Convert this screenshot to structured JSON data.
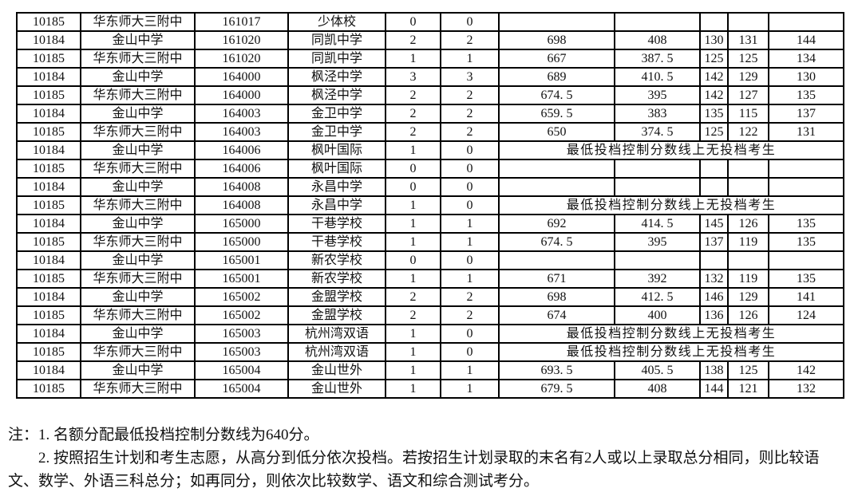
{
  "table": {
    "column_semantics": [
      "district_school_code",
      "district_school_name",
      "middle_school_code",
      "middle_school_name",
      "plan_count",
      "admitted_count",
      "total_score",
      "subtotal_score",
      "chinese_score",
      "math_score",
      "foreign_language_score"
    ],
    "no_candidate_text": "最低投档控制分数线上无投档考生",
    "rows": [
      {
        "c": [
          "10185",
          "华东师大三附中",
          "161017",
          "少体校",
          "0",
          "0",
          "",
          "",
          "",
          "",
          ""
        ]
      },
      {
        "c": [
          "10184",
          "金山中学",
          "161020",
          "同凯中学",
          "2",
          "2",
          "698",
          "408",
          "130",
          "131",
          "144"
        ]
      },
      {
        "c": [
          "10185",
          "华东师大三附中",
          "161020",
          "同凯中学",
          "1",
          "1",
          "667",
          "387. 5",
          "125",
          "125",
          "134"
        ]
      },
      {
        "c": [
          "10184",
          "金山中学",
          "164000",
          "枫泾中学",
          "3",
          "3",
          "689",
          "410. 5",
          "142",
          "129",
          "130"
        ]
      },
      {
        "c": [
          "10185",
          "华东师大三附中",
          "164000",
          "枫泾中学",
          "2",
          "2",
          "674. 5",
          "395",
          "142",
          "127",
          "135"
        ]
      },
      {
        "c": [
          "10184",
          "金山中学",
          "164003",
          "金卫中学",
          "2",
          "2",
          "659. 5",
          "383",
          "135",
          "115",
          "137"
        ]
      },
      {
        "c": [
          "10185",
          "华东师大三附中",
          "164003",
          "金卫中学",
          "2",
          "2",
          "650",
          "374. 5",
          "125",
          "122",
          "131"
        ]
      },
      {
        "c": [
          "10184",
          "金山中学",
          "164006",
          "枫叶国际",
          "1",
          "0"
        ],
        "merged": "最低投档控制分数线上无投档考生"
      },
      {
        "c": [
          "10185",
          "华东师大三附中",
          "164006",
          "枫叶国际",
          "0",
          "0",
          "",
          "",
          "",
          "",
          ""
        ]
      },
      {
        "c": [
          "10184",
          "金山中学",
          "164008",
          "永昌中学",
          "0",
          "0",
          "",
          "",
          "",
          "",
          ""
        ]
      },
      {
        "c": [
          "10185",
          "华东师大三附中",
          "164008",
          "永昌中学",
          "1",
          "0"
        ],
        "merged": "最低投档控制分数线上无投档考生"
      },
      {
        "c": [
          "10184",
          "金山中学",
          "165000",
          "干巷学校",
          "1",
          "1",
          "692",
          "414. 5",
          "145",
          "126",
          "135"
        ]
      },
      {
        "c": [
          "10185",
          "华东师大三附中",
          "165000",
          "干巷学校",
          "1",
          "1",
          "674. 5",
          "395",
          "137",
          "119",
          "135"
        ]
      },
      {
        "c": [
          "10184",
          "金山中学",
          "165001",
          "新农学校",
          "0",
          "0",
          "",
          "",
          "",
          "",
          ""
        ]
      },
      {
        "c": [
          "10185",
          "华东师大三附中",
          "165001",
          "新农学校",
          "1",
          "1",
          "671",
          "392",
          "132",
          "119",
          "135"
        ]
      },
      {
        "c": [
          "10184",
          "金山中学",
          "165002",
          "金盟学校",
          "2",
          "2",
          "698",
          "412. 5",
          "146",
          "129",
          "141"
        ]
      },
      {
        "c": [
          "10185",
          "华东师大三附中",
          "165002",
          "金盟学校",
          "2",
          "2",
          "674",
          "400",
          "136",
          "126",
          "124"
        ]
      },
      {
        "c": [
          "10184",
          "金山中学",
          "165003",
          "杭州湾双语",
          "1",
          "0"
        ],
        "merged": "最低投档控制分数线上无投档考生"
      },
      {
        "c": [
          "10185",
          "华东师大三附中",
          "165003",
          "杭州湾双语",
          "1",
          "0"
        ],
        "merged": "最低投档控制分数线上无投档考生"
      },
      {
        "c": [
          "10184",
          "金山中学",
          "165004",
          "金山世外",
          "1",
          "1",
          "693. 5",
          "405. 5",
          "138",
          "125",
          "142"
        ]
      },
      {
        "c": [
          "10185",
          "华东师大三附中",
          "165004",
          "金山世外",
          "1",
          "1",
          "679. 5",
          "408",
          "144",
          "121",
          "132"
        ]
      }
    ]
  },
  "notes": {
    "line1": "注：1. 名额分配最低投档控制分数线为640分。",
    "line2": "2. 按照招生计划和考生志愿，从高分到低分依次投档。若按招生计划录取的末名有2人或以上录取总分相同，则比较语文、数学、外语三科总分；如再同分，则依次比较数学、语文和综合测试考分。"
  },
  "colors": {
    "background": "#ffffff",
    "border": "#000000",
    "text": "#111111"
  }
}
